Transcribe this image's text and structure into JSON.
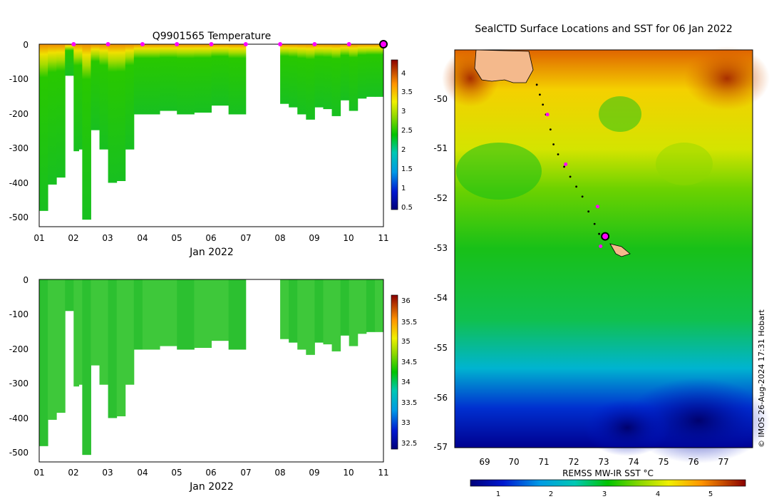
{
  "left_top": {
    "title": "Q9901565  Temperature",
    "xlabel": "Jan 2022",
    "x_ticks": [
      "01",
      "02",
      "03",
      "04",
      "05",
      "06",
      "07",
      "08",
      "09",
      "10",
      "11"
    ],
    "y_ticks": [
      "0",
      "-100",
      "-200",
      "-300",
      "-400",
      "-500"
    ],
    "colorbar_ticks": [
      "4",
      "3.5",
      "3",
      "2.5",
      "2",
      "1.5",
      "1",
      "0.5"
    ]
  },
  "left_bottom": {
    "xlabel": "Jan 2022",
    "x_ticks": [
      "01",
      "02",
      "03",
      "04",
      "05",
      "06",
      "07",
      "08",
      "09",
      "10",
      "11"
    ],
    "y_ticks": [
      "0",
      "-100",
      "-200",
      "-300",
      "-400",
      "-500"
    ],
    "colorbar_ticks": [
      "36",
      "35.5",
      "35",
      "34.5",
      "34",
      "33.5",
      "33",
      "32.5"
    ]
  },
  "map": {
    "title": "SealCTD Surface Locations and SST for 06 Jan 2022",
    "lon_ticks": [
      "69",
      "70",
      "71",
      "72",
      "73",
      "74",
      "75",
      "76",
      "77"
    ],
    "lat_ticks": [
      "-50",
      "-51",
      "-52",
      "-53",
      "-54",
      "-55",
      "-56",
      "-57"
    ],
    "colorbar_label": "REMSS MW-IR SST °C",
    "colorbar_ticks": [
      "1",
      "2",
      "3",
      "4",
      "5"
    ],
    "credit": "© IMOS 26-Aug-2024 17:31 Hobart"
  },
  "chart_data": [
    {
      "type": "heatmap",
      "title": "Q9901565  Temperature",
      "xlabel": "Jan 2022",
      "xlim": [
        1,
        11
      ],
      "ylim": [
        -520,
        0
      ],
      "colorbar_range": [
        0.3,
        4.3
      ],
      "profile_days": [
        1.0,
        1.25,
        1.5,
        1.75,
        2.0,
        2.15,
        2.25,
        2.5,
        2.75,
        3.0,
        3.25,
        3.5,
        3.75,
        4.0,
        4.5,
        5.0,
        5.5,
        6.0,
        6.5,
        7.0,
        8.0,
        8.25,
        8.5,
        8.75,
        9.0,
        9.25,
        9.5,
        9.75,
        10.0,
        10.25,
        10.5,
        10.75
      ],
      "profile_max_depth": [
        -475,
        -400,
        -380,
        -90,
        -305,
        -300,
        -500,
        -245,
        -300,
        -395,
        -390,
        -300,
        -200,
        -200,
        -190,
        -200,
        -195,
        -175,
        -200,
        -200,
        -170,
        -180,
        -200,
        -215,
        -180,
        -185,
        -205,
        -160,
        -190,
        -155,
        -150,
        -150
      ],
      "profile_marker_days": [
        2,
        3,
        4,
        5,
        6,
        7,
        8,
        9,
        10
      ],
      "current_position_day": 11
    },
    {
      "type": "heatmap",
      "xlabel": "Jan 2022",
      "xlim": [
        1,
        11
      ],
      "ylim": [
        -520,
        0
      ],
      "colorbar_range": [
        32.3,
        36.2
      ]
    },
    {
      "type": "heatmap",
      "title": "SealCTD Surface Locations and SST for 06 Jan 2022",
      "xlim": [
        68.1,
        77.9
      ],
      "ylim": [
        -57.0,
        -49.0
      ],
      "colorbar_label": "REMSS MW-IR SST °C",
      "colorbar_range": [
        0.5,
        5.7
      ],
      "track_lon": [
        70.8,
        70.9,
        71.0,
        71.1,
        71.25,
        71.35,
        71.5,
        71.7,
        71.9,
        72.1,
        72.3,
        72.5,
        72.7,
        72.85
      ],
      "track_lat": [
        -49.7,
        -49.9,
        -50.1,
        -50.3,
        -50.6,
        -50.9,
        -51.1,
        -51.35,
        -51.55,
        -51.75,
        -51.95,
        -52.25,
        -52.5,
        -52.7
      ],
      "profile_marker_lon": [
        71.15,
        71.75,
        72.8,
        72.9
      ],
      "profile_marker_lat": [
        -50.3,
        -51.3,
        -52.15,
        -52.95
      ],
      "current_position": [
        73.05,
        -52.75
      ]
    }
  ]
}
